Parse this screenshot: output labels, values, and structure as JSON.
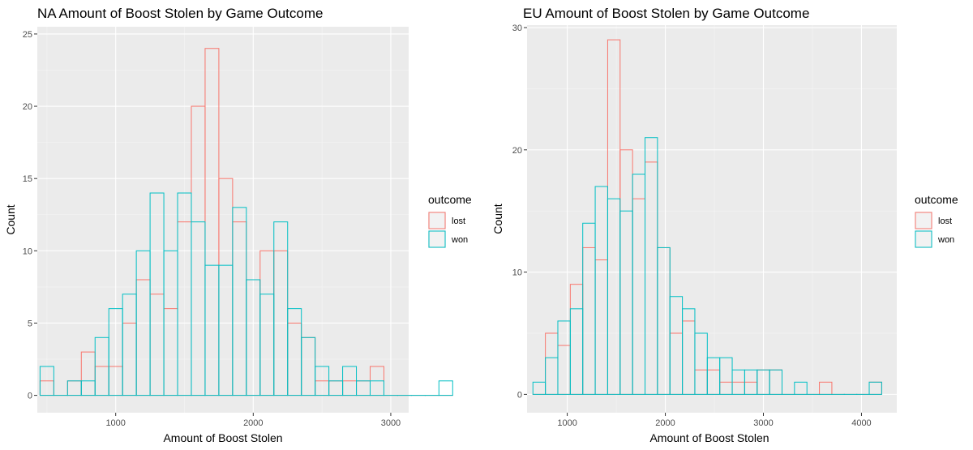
{
  "chart_data": [
    {
      "type": "histogram",
      "title": "NA Amount of Boost Stolen by Game Outcome",
      "xlabel": "Amount of Boost Stolen",
      "ylabel": "Count",
      "xlim": [
        430,
        3130
      ],
      "ylim": [
        -1.2,
        25.5
      ],
      "x_ticks": [
        1000,
        2000,
        3000
      ],
      "y_ticks": [
        0,
        5,
        10,
        15,
        20,
        25
      ],
      "bin_start": 450,
      "bin_width": 100,
      "legend_title": "outcome",
      "legend_position": "right",
      "series": [
        {
          "name": "lost",
          "color": "#F8766D",
          "values": [
            1,
            0,
            1,
            3,
            2,
            2,
            5,
            8,
            7,
            6,
            12,
            20,
            24,
            15,
            12,
            8,
            10,
            10,
            5,
            4,
            1,
            1,
            1,
            1,
            2,
            0,
            0,
            0,
            0,
            0
          ]
        },
        {
          "name": "won",
          "color": "#00BFC4",
          "values": [
            2,
            0,
            1,
            1,
            4,
            6,
            7,
            10,
            14,
            10,
            14,
            12,
            9,
            9,
            13,
            8,
            7,
            12,
            6,
            4,
            2,
            1,
            2,
            1,
            1,
            0,
            0,
            0,
            0,
            1
          ]
        }
      ]
    },
    {
      "type": "histogram",
      "title": "EU Amount of Boost Stolen by Game Outcome",
      "xlabel": "Amount of Boost Stolen",
      "ylabel": "Count",
      "xlim": [
        590,
        4360
      ],
      "ylim": [
        -1.5,
        30.2
      ],
      "x_ticks": [
        1000,
        2000,
        3000,
        4000
      ],
      "y_ticks": [
        0,
        10,
        20,
        30
      ],
      "bin_start": 650,
      "bin_width": 127,
      "legend_title": "outcome",
      "legend_position": "right",
      "series": [
        {
          "name": "lost",
          "color": "#F8766D",
          "values": [
            0,
            5,
            4,
            9,
            12,
            11,
            29,
            20,
            16,
            19,
            12,
            5,
            6,
            2,
            2,
            1,
            1,
            1,
            2,
            2,
            0,
            0,
            0,
            1,
            0,
            0,
            0,
            1
          ]
        },
        {
          "name": "won",
          "color": "#00BFC4",
          "values": [
            1,
            3,
            6,
            7,
            14,
            17,
            16,
            15,
            18,
            21,
            12,
            8,
            7,
            5,
            3,
            3,
            2,
            2,
            2,
            2,
            0,
            1,
            0,
            0,
            0,
            0,
            0,
            1
          ]
        }
      ]
    }
  ]
}
